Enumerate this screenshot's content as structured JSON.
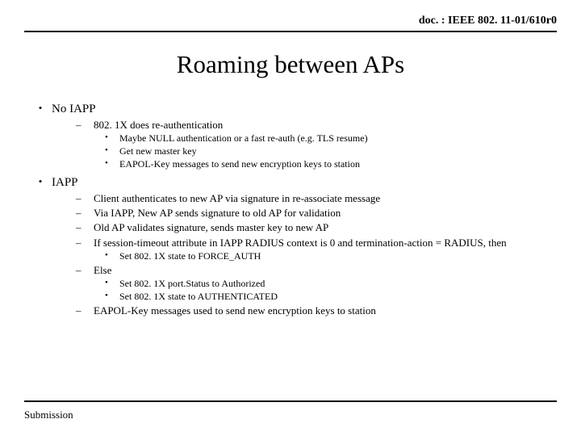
{
  "doc_id": "doc. : IEEE 802. 11-01/610r0",
  "title": "Roaming between APs",
  "footer": "Submission",
  "sec1": {
    "head": "No IAPP",
    "a": "802. 1X does re-authentication",
    "a1": "Maybe NULL authentication or a fast re-auth (e.g. TLS resume)",
    "a2": "Get new master key",
    "a3": "EAPOL-Key messages to send new encryption keys to station"
  },
  "sec2": {
    "head": "IAPP",
    "a": "Client authenticates to new AP via signature in re-associate message",
    "b": "Via IAPP, New AP sends signature to old AP for validation",
    "c": "Old AP validates signature, sends master key to new AP",
    "d": "If session-timeout attribute in IAPP RADIUS context is 0 and termination-action = RADIUS, then",
    "d1": "Set 802. 1X state to FORCE_AUTH",
    "e": "Else",
    "e1": "Set 802. 1X port.Status to Authorized",
    "e2": "Set 802. 1X state to AUTHENTICATED",
    "f": "EAPOL-Key messages used to send new encryption keys to station"
  }
}
